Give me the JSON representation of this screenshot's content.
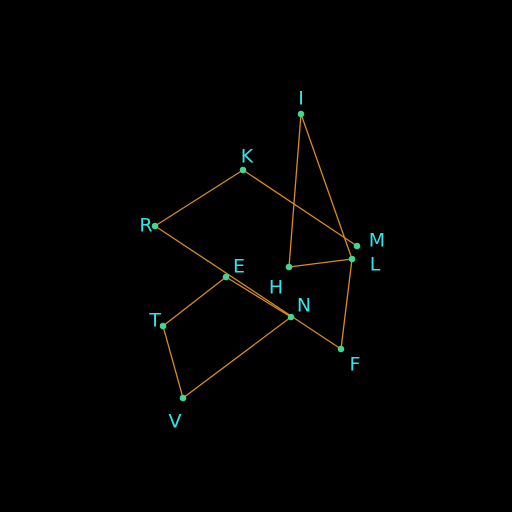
{
  "colors": {
    "background": "#000000",
    "edge": "#d98c1f",
    "vertex": "#40d890",
    "label": "#33e5ea"
  },
  "diagram": {
    "vertices": [
      {
        "id": "I",
        "label": "I"
      },
      {
        "id": "K",
        "label": "K"
      },
      {
        "id": "R",
        "label": "R"
      },
      {
        "id": "M",
        "label": "M"
      },
      {
        "id": "L",
        "label": "L"
      },
      {
        "id": "H",
        "label": "H"
      },
      {
        "id": "E",
        "label": "E"
      },
      {
        "id": "N",
        "label": "N"
      },
      {
        "id": "T",
        "label": "T"
      },
      {
        "id": "F",
        "label": "F"
      },
      {
        "id": "V",
        "label": "V"
      }
    ],
    "edges": [
      [
        "I",
        "H"
      ],
      [
        "I",
        "L"
      ],
      [
        "H",
        "L"
      ],
      [
        "L",
        "F"
      ],
      [
        "F",
        "R"
      ],
      [
        "R",
        "K"
      ],
      [
        "K",
        "M"
      ],
      [
        "E",
        "N"
      ],
      [
        "E",
        "T"
      ],
      [
        "T",
        "V"
      ],
      [
        "V",
        "N"
      ]
    ]
  }
}
